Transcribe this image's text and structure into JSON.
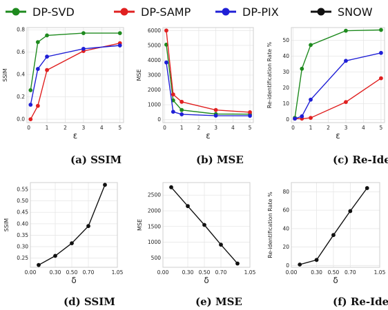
{
  "legend": [
    {
      "name": "DP-SVD",
      "color": "#1e8a1e"
    },
    {
      "name": "DP-SAMP",
      "color": "#e02020"
    },
    {
      "name": "DP-PIX",
      "color": "#1f1fd6"
    },
    {
      "name": "SNOW",
      "color": "#111111"
    }
  ],
  "chart_data": [
    {
      "id": "a",
      "type": "line",
      "caption": "(a) SSIM",
      "xlabel": "ε",
      "ylabel": "SSIM",
      "xlim": [
        -0.1,
        5.2
      ],
      "ylim": [
        -0.03,
        0.82
      ],
      "xticks": [
        0,
        1,
        2,
        3,
        4,
        5
      ],
      "xticklabels": [
        "0",
        "1",
        "2",
        "3",
        "4",
        "5"
      ],
      "yticks": [
        0.0,
        0.2,
        0.4,
        0.6,
        0.8
      ],
      "yticklabels": [
        "0.0",
        "0.2",
        "0.4",
        "0.6",
        "0.8"
      ],
      "x": [
        0.1,
        0.5,
        1,
        3,
        5
      ],
      "series": [
        {
          "name": "DP-SVD",
          "color": "#1e8a1e",
          "values": [
            0.26,
            0.69,
            0.75,
            0.77,
            0.77
          ]
        },
        {
          "name": "DP-SAMP",
          "color": "#e02020",
          "values": [
            0.0,
            0.12,
            0.44,
            0.61,
            0.68
          ]
        },
        {
          "name": "DP-PIX",
          "color": "#1f1fd6",
          "values": [
            0.13,
            0.45,
            0.56,
            0.63,
            0.66
          ]
        }
      ]
    },
    {
      "id": "b",
      "type": "line",
      "caption": "(b) MSE",
      "xlabel": "ε",
      "ylabel": "MSE",
      "xlim": [
        -0.1,
        5.2
      ],
      "ylim": [
        -200,
        6200
      ],
      "xticks": [
        0,
        1,
        2,
        3,
        4,
        5
      ],
      "xticklabels": [
        "0",
        "1",
        "2",
        "3",
        "4",
        "5"
      ],
      "yticks": [
        0,
        1000,
        2000,
        3000,
        4000,
        5000,
        6000
      ],
      "yticklabels": [
        "0",
        "1000",
        "2000",
        "3000",
        "4000",
        "5000",
        "6000"
      ],
      "x": [
        0.1,
        0.5,
        1,
        3,
        5
      ],
      "series": [
        {
          "name": "DP-SVD",
          "color": "#1e8a1e",
          "values": [
            5050,
            1300,
            650,
            380,
            370
          ]
        },
        {
          "name": "DP-SAMP",
          "color": "#e02020",
          "values": [
            6000,
            1700,
            1200,
            650,
            500
          ]
        },
        {
          "name": "DP-PIX",
          "color": "#1f1fd6",
          "values": [
            3850,
            530,
            360,
            270,
            260
          ]
        }
      ]
    },
    {
      "id": "c",
      "type": "line",
      "caption": "(c) Re-Identification",
      "xlabel": "ε",
      "ylabel": "Re-identification Rate %",
      "xlim": [
        -0.1,
        5.2
      ],
      "ylim": [
        -2,
        58
      ],
      "xticks": [
        0,
        1,
        2,
        3,
        4,
        5
      ],
      "xticklabels": [
        "0",
        "1",
        "2",
        "3",
        "4",
        "5"
      ],
      "yticks": [
        0,
        10,
        20,
        30,
        40,
        50
      ],
      "yticklabels": [
        "0",
        "10",
        "20",
        "30",
        "40",
        "50"
      ],
      "x": [
        0.1,
        0.5,
        1,
        3,
        5
      ],
      "series": [
        {
          "name": "DP-SVD",
          "color": "#1e8a1e",
          "values": [
            1,
            32,
            47,
            56,
            56.5
          ]
        },
        {
          "name": "DP-SAMP",
          "color": "#e02020",
          "values": [
            0.5,
            0.5,
            1,
            11,
            26
          ]
        },
        {
          "name": "DP-PIX",
          "color": "#1f1fd6",
          "values": [
            0.5,
            2,
            12.5,
            37,
            42
          ]
        }
      ]
    },
    {
      "id": "d",
      "type": "line",
      "caption": "(d) SSIM",
      "xlabel": "δ",
      "ylabel": "SSIM",
      "xlim": [
        0.0,
        1.05
      ],
      "ylim": [
        0.21,
        0.58
      ],
      "xticks": [
        0.0,
        0.3,
        0.5,
        0.7,
        1.05
      ],
      "xticklabels": [
        "0.00",
        "0.30",
        "0.50",
        "0.70",
        "1.05"
      ],
      "yticks": [
        0.25,
        0.3,
        0.35,
        0.4,
        0.45,
        0.5,
        0.55
      ],
      "yticklabels": [
        "0.25",
        "0.30",
        "0.35",
        "0.40",
        "0.45",
        "0.50",
        "0.55"
      ],
      "x": [
        0.1,
        0.3,
        0.5,
        0.7,
        0.9
      ],
      "series": [
        {
          "name": "SNOW",
          "color": "#111111",
          "values": [
            0.22,
            0.26,
            0.315,
            0.39,
            0.57
          ]
        }
      ]
    },
    {
      "id": "e",
      "type": "line",
      "caption": "(e) MSE",
      "xlabel": "δ",
      "ylabel": "MSE",
      "xlim": [
        0.0,
        1.05
      ],
      "ylim": [
        200,
        2900
      ],
      "xticks": [
        0.0,
        0.3,
        0.5,
        0.7,
        1.05
      ],
      "xticklabels": [
        "0.00",
        "0.30",
        "0.50",
        "0.70",
        "1.05"
      ],
      "yticks": [
        500,
        1000,
        1500,
        2000,
        2500
      ],
      "yticklabels": [
        "500",
        "1000",
        "1500",
        "2000",
        "2500"
      ],
      "x": [
        0.1,
        0.3,
        0.5,
        0.7,
        0.9
      ],
      "series": [
        {
          "name": "SNOW",
          "color": "#111111",
          "values": [
            2750,
            2150,
            1550,
            920,
            320
          ]
        }
      ]
    },
    {
      "id": "f",
      "type": "line",
      "caption": "(f) Re-Identification",
      "xlabel": "δ",
      "ylabel": "Re-identification Rate %",
      "xlim": [
        0.0,
        1.05
      ],
      "ylim": [
        -2,
        90
      ],
      "xticks": [
        0.0,
        0.3,
        0.5,
        0.7,
        1.05
      ],
      "xticklabels": [
        "0.00",
        "0.30",
        "0.50",
        "0.70",
        "1.05"
      ],
      "yticks": [
        0,
        20,
        40,
        60,
        80
      ],
      "yticklabels": [
        "0",
        "20",
        "40",
        "60",
        "80"
      ],
      "x": [
        0.1,
        0.3,
        0.5,
        0.7,
        0.9
      ],
      "series": [
        {
          "name": "SNOW",
          "color": "#111111",
          "values": [
            1,
            6,
            33,
            59,
            84
          ]
        }
      ]
    }
  ]
}
